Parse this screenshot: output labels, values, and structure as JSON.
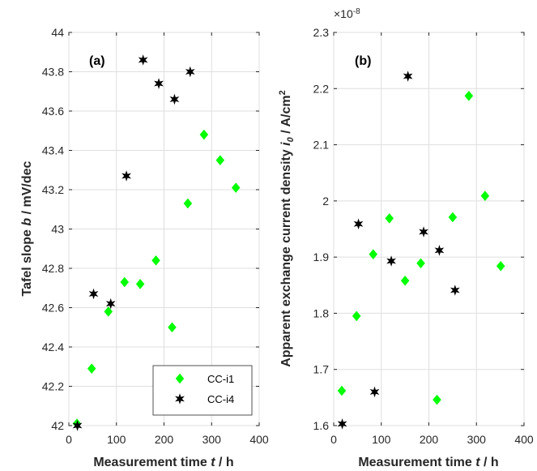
{
  "chart_data": [
    {
      "type": "scatter",
      "panel_label": "(a)",
      "xlabel": {
        "prefix": "Measurement time ",
        "var": "t",
        "suffix": " / h"
      },
      "ylabel": {
        "prefix": "Tafel slope ",
        "var": "b",
        "suffix": " / mV/dec"
      },
      "xlim": [
        0,
        400
      ],
      "ylim": [
        42,
        44
      ],
      "xticks": [
        "0",
        "100",
        "200",
        "300",
        "400"
      ],
      "xtick_values": [
        0,
        100,
        200,
        300,
        400
      ],
      "yticks": [
        "42",
        "42.2",
        "42.4",
        "42.6",
        "42.8",
        "43",
        "43.2",
        "43.4",
        "43.6",
        "43.8",
        "44"
      ],
      "ytick_values": [
        42,
        42.2,
        42.4,
        42.6,
        42.8,
        43,
        43.2,
        43.4,
        43.6,
        43.8,
        44
      ],
      "grid": true,
      "legend_position": "bottom-right",
      "series": [
        {
          "name": "CC-i1",
          "marker": "diamond",
          "color": "#00ff00",
          "x": [
            17,
            48,
            83,
            117,
            150,
            183,
            217,
            250,
            284,
            318,
            351
          ],
          "y": [
            42.01,
            42.29,
            42.58,
            42.73,
            42.72,
            42.84,
            42.5,
            43.13,
            43.48,
            43.35,
            43.21
          ]
        },
        {
          "name": "CC-i4",
          "marker": "star",
          "color": "#000000",
          "x": [
            18,
            52,
            88,
            121,
            156,
            189,
            222,
            255
          ],
          "y": [
            42.0,
            42.67,
            42.62,
            43.27,
            43.86,
            43.74,
            43.66,
            43.8
          ]
        }
      ]
    },
    {
      "type": "scatter",
      "panel_label": "(b)",
      "exponent_label": "×10",
      "exponent_power": "-8",
      "xlabel": {
        "prefix": "Measurement time ",
        "var": "t",
        "suffix": " / h"
      },
      "ylabel": {
        "prefix": "Apparent exchange current density  ",
        "var": "i",
        "sub": "0",
        "mid": " / A/cm",
        "sup": "2"
      },
      "xlim": [
        0,
        400
      ],
      "ylim": [
        1.6,
        2.3
      ],
      "xticks": [
        "0",
        "100",
        "200",
        "300",
        "400"
      ],
      "xtick_values": [
        0,
        100,
        200,
        300,
        400
      ],
      "yticks": [
        "1.6",
        "1.7",
        "1.8",
        "1.9",
        "2",
        "2.1",
        "2.2",
        "2.3"
      ],
      "ytick_values": [
        1.6,
        1.7,
        1.8,
        1.9,
        2.0,
        2.1,
        2.2,
        2.3
      ],
      "grid": true,
      "series": [
        {
          "name": "CC-i1",
          "marker": "diamond",
          "color": "#00ff00",
          "x": [
            17,
            48,
            83,
            117,
            150,
            183,
            217,
            250,
            284,
            318,
            351
          ],
          "y": [
            1.662,
            1.795,
            1.905,
            1.969,
            1.858,
            1.889,
            1.646,
            1.971,
            2.187,
            2.009,
            1.884
          ]
        },
        {
          "name": "CC-i4",
          "marker": "star",
          "color": "#000000",
          "x": [
            18,
            52,
            86,
            121,
            156,
            189,
            222,
            255
          ],
          "y": [
            1.603,
            1.959,
            1.66,
            1.893,
            2.222,
            1.945,
            1.912,
            1.841
          ]
        }
      ]
    }
  ]
}
